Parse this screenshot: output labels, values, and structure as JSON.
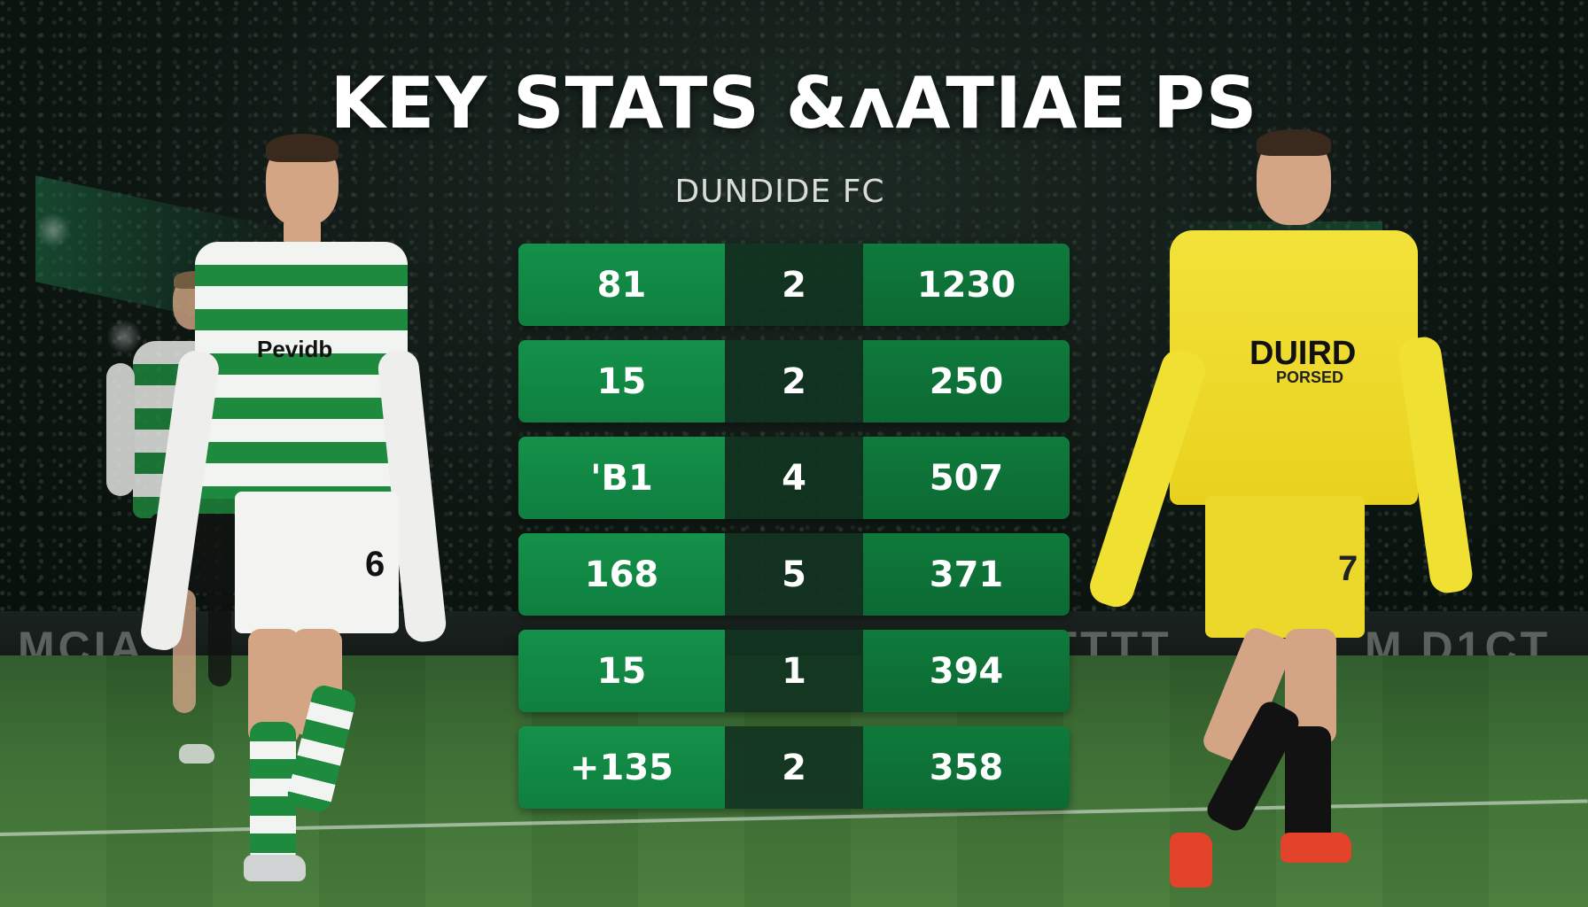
{
  "header": {
    "title": "KEY STATS &ʌATIAE PS",
    "subtitle": "DUNDIDE FC"
  },
  "stats": [
    {
      "left": "81",
      "mid": "2",
      "right": "1230"
    },
    {
      "left": "15",
      "mid": "2",
      "right": "250"
    },
    {
      "left": "'B1",
      "mid": "4",
      "right": "507"
    },
    {
      "left": "168",
      "mid": "5",
      "right": "371"
    },
    {
      "left": "15",
      "mid": "1",
      "right": "394"
    },
    {
      "left": "+135",
      "mid": "2",
      "right": "358"
    }
  ],
  "players": {
    "left_sponsor": "Pevidb",
    "left_number": "6",
    "right_sponsor": "DUIRD",
    "right_sponsor_sub": "PORSED",
    "right_number": "7"
  },
  "boards": {
    "left": "MCIA",
    "center": "TTTTT",
    "right": "M D1CT"
  },
  "colors": {
    "cell_left": "#14914a",
    "cell_mid": "#123422",
    "cell_right": "#0f7a3c",
    "hoop_green": "#1e8a3e",
    "kit_yellow": "#f3e23a"
  }
}
